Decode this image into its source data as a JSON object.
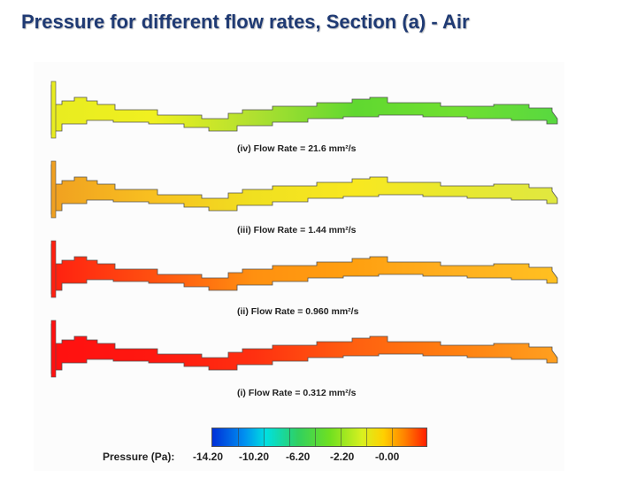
{
  "title": "Pressure for different flow rates, Section (a) - Air",
  "panels": [
    {
      "label": "(iv) Flow Rate = 21.6 mm²/s",
      "gradient": [
        "#e8ec20",
        "#f0f020",
        "#b0e030",
        "#60d830",
        "#70e030",
        "#58d840"
      ]
    },
    {
      "label": "(iii) Flow Rate = 1.44 mm²/s",
      "gradient": [
        "#f0a020",
        "#f8c020",
        "#f0e020",
        "#f8e820",
        "#e8e830",
        "#e0e840"
      ]
    },
    {
      "label": "(ii) Flow Rate = 0.960 mm²/s",
      "gradient": [
        "#ff2010",
        "#ff5010",
        "#ff9010",
        "#ffa010",
        "#ffb020",
        "#ffc020"
      ]
    },
    {
      "label": "(i) Flow Rate = 0.312 mm²/s",
      "gradient": [
        "#ff1010",
        "#ff1810",
        "#ff3010",
        "#ff6010",
        "#ff8010",
        "#ffa020"
      ]
    }
  ],
  "legend": {
    "label": "Pressure (Pa):",
    "ticks": [
      "-14.20",
      "-10.20",
      "-6.20",
      "-2.20",
      "-0.00"
    ]
  }
}
